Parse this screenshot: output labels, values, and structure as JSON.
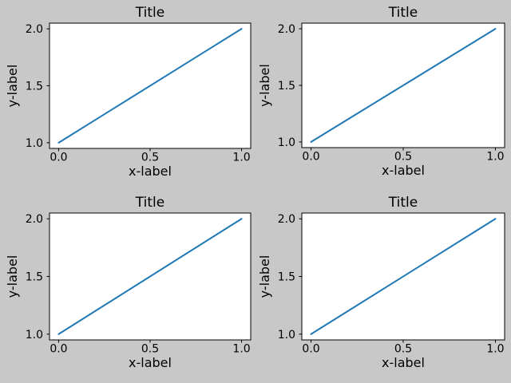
{
  "figure": {
    "background_color": "#c8c8c8",
    "axes_face_color": "#ffffff",
    "spine_color": "#000000",
    "text_color": "#000000",
    "rows": 2,
    "cols": 2
  },
  "chart_data": [
    {
      "type": "line",
      "title": "Title",
      "xlabel": "x-label",
      "ylabel": "y-label",
      "x": [
        0.0,
        1.0
      ],
      "y": [
        1.0,
        2.0
      ],
      "xlim": [
        -0.05,
        1.05
      ],
      "ylim": [
        0.95,
        2.05
      ],
      "xticks": [
        "0.0",
        "0.5",
        "1.0"
      ],
      "xtick_values": [
        0.0,
        0.5,
        1.0
      ],
      "yticks": [
        "1.0",
        "1.5",
        "2.0"
      ],
      "ytick_values": [
        1.0,
        1.5,
        2.0
      ],
      "grid": false,
      "legend": null,
      "line_color": "#1f77b4"
    },
    {
      "type": "line",
      "title": "Title",
      "xlabel": "x-label",
      "ylabel": "y-label",
      "x": [
        0.0,
        1.0
      ],
      "y": [
        1.0,
        2.0
      ],
      "xlim": [
        -0.05,
        1.05
      ],
      "ylim": [
        0.95,
        2.05
      ],
      "xticks": [
        "0.0",
        "0.5",
        "1.0"
      ],
      "xtick_values": [
        0.0,
        0.5,
        1.0
      ],
      "yticks": [
        "1.0",
        "1.5",
        "2.0"
      ],
      "ytick_values": [
        1.0,
        1.5,
        2.0
      ],
      "grid": false,
      "legend": null,
      "line_color": "#1f77b4"
    },
    {
      "type": "line",
      "title": "Title",
      "xlabel": "x-label",
      "ylabel": "y-label",
      "x": [
        0.0,
        1.0
      ],
      "y": [
        1.0,
        2.0
      ],
      "xlim": [
        -0.05,
        1.05
      ],
      "ylim": [
        0.95,
        2.05
      ],
      "xticks": [
        "0.0",
        "0.5",
        "1.0"
      ],
      "xtick_values": [
        0.0,
        0.5,
        1.0
      ],
      "yticks": [
        "1.0",
        "1.5",
        "2.0"
      ],
      "ytick_values": [
        1.0,
        1.5,
        2.0
      ],
      "grid": false,
      "legend": null,
      "line_color": "#1f77b4"
    },
    {
      "type": "line",
      "title": "Title",
      "xlabel": "x-label",
      "ylabel": "y-label",
      "x": [
        0.0,
        1.0
      ],
      "y": [
        1.0,
        2.0
      ],
      "xlim": [
        -0.05,
        1.05
      ],
      "ylim": [
        0.95,
        2.05
      ],
      "xticks": [
        "0.0",
        "0.5",
        "1.0"
      ],
      "xtick_values": [
        0.0,
        0.5,
        1.0
      ],
      "yticks": [
        "1.0",
        "1.5",
        "2.0"
      ],
      "ytick_values": [
        1.0,
        1.5,
        2.0
      ],
      "grid": false,
      "legend": null,
      "line_color": "#1f77b4"
    }
  ]
}
